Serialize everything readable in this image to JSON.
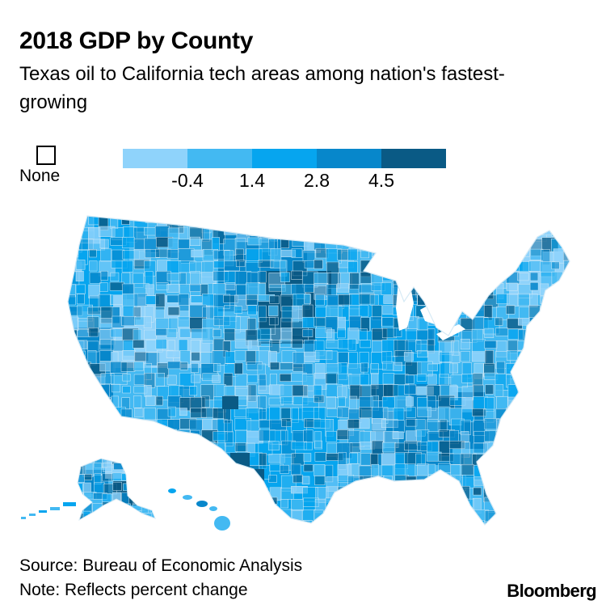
{
  "header": {
    "title": "2018 GDP by County",
    "subtitle": "Texas oil to California tech areas among nation's fastest-growing"
  },
  "legend": {
    "none_label": "None",
    "swatch_colors": [
      "#8fd3fb",
      "#43b9f2",
      "#06a5ef",
      "#0787cb",
      "#0a5a85"
    ],
    "tick_labels": [
      "-0.4",
      "1.4",
      "2.8",
      "4.5"
    ]
  },
  "map": {
    "colors": {
      "bin1": "#8fd3fb",
      "bin2": "#43b9f2",
      "bin3": "#06a5ef",
      "bin4": "#0787cb",
      "bin5": "#0a5a85",
      "borders": "#d6eaf5"
    }
  },
  "footer": {
    "source": "Source: Bureau of Economic Analysis",
    "note": "Note: Reflects percent change",
    "brand": "Bloomberg"
  }
}
